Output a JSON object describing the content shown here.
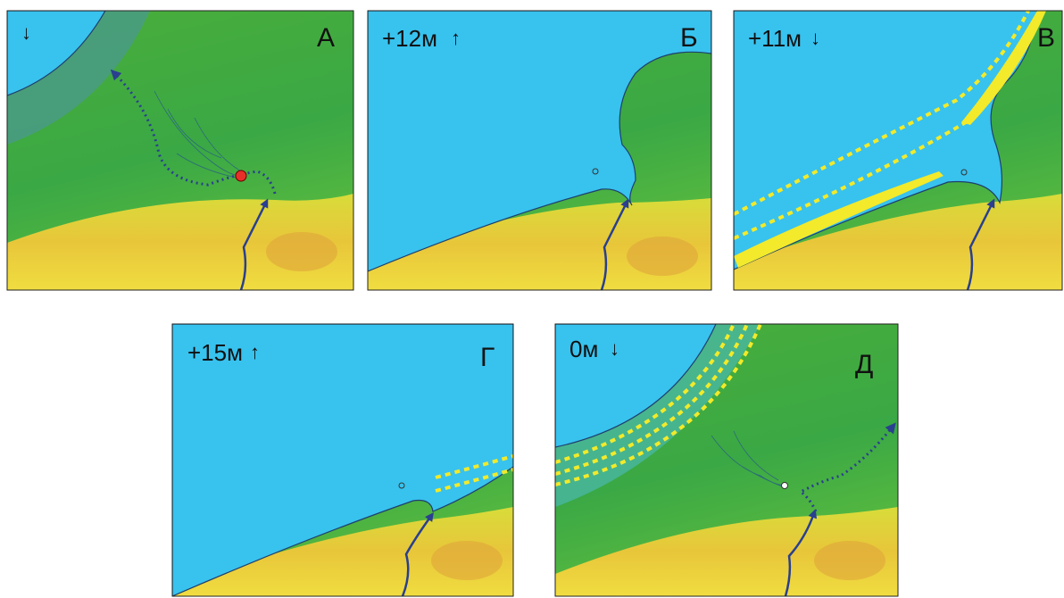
{
  "panels": [
    {
      "letter": "А",
      "direction": "↓"
    },
    {
      "letter": "Б",
      "level": "+12м",
      "direction": "↑"
    },
    {
      "letter": "В",
      "level": "+11м",
      "direction": "↓"
    },
    {
      "letter": "Г",
      "level": "+15м",
      "direction": "↑"
    },
    {
      "letter": "Д",
      "level": "0м",
      "direction": "↓"
    }
  ]
}
